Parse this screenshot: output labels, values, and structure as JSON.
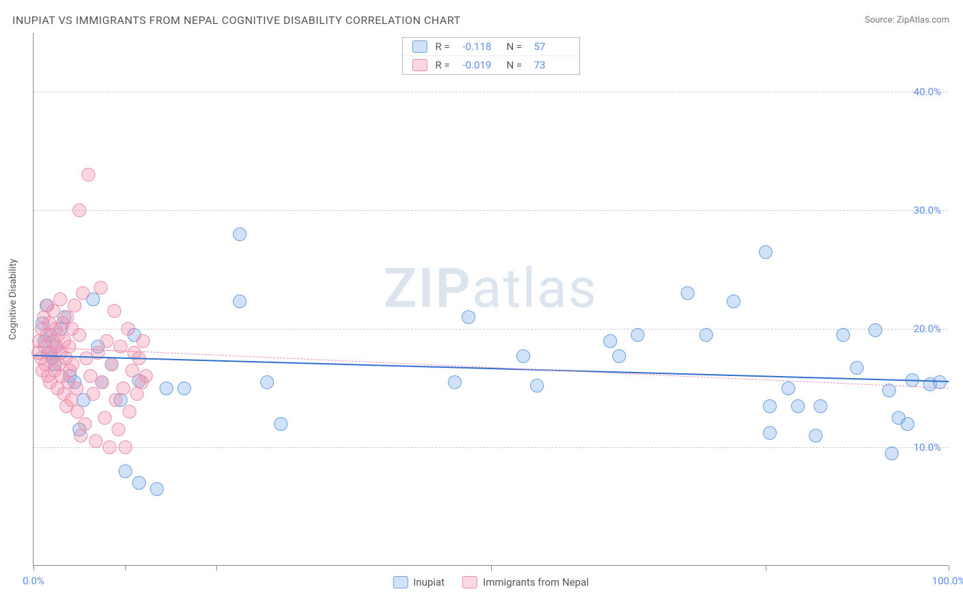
{
  "title": "INUPIAT VS IMMIGRANTS FROM NEPAL COGNITIVE DISABILITY CORRELATION CHART",
  "source_label": "Source: ",
  "source_value": "ZipAtlas.com",
  "ylabel": "Cognitive Disability",
  "watermark_a": "ZIP",
  "watermark_b": "atlas",
  "chart": {
    "type": "scatter",
    "background_color": "#ffffff",
    "grid_color": "#cccccc",
    "axis_color": "#888888",
    "label_color": "#5b8def",
    "text_color": "#555555",
    "xlim": [
      0,
      100
    ],
    "ylim": [
      0,
      45
    ],
    "y_gridlines": [
      10,
      20,
      30,
      40
    ],
    "y_tick_labels": [
      "10.0%",
      "20.0%",
      "30.0%",
      "40.0%"
    ],
    "x_ticks": [
      0,
      10,
      20,
      50,
      80,
      100
    ],
    "x_tick_labels": [
      "0.0%",
      "",
      "",
      "",
      "",
      "100.0%"
    ],
    "marker_radius": 10,
    "series": [
      {
        "id": "inupiat",
        "name": "Inupiat",
        "marker_fill": "rgba(120,170,235,0.35)",
        "marker_stroke": "#6aa0e0",
        "trend_color": "#2f6fd0",
        "trend_dash": "solid",
        "trend_width": 2,
        "trend": {
          "x1": 0,
          "y1": 17.8,
          "x2": 100,
          "y2": 15.6
        },
        "R_label": "R =",
        "R": "-0.118",
        "N_label": "N =",
        "N": "57",
        "points": [
          [
            1.0,
            20.5
          ],
          [
            1.2,
            19.0
          ],
          [
            1.4,
            22.0
          ],
          [
            1.6,
            18.0
          ],
          [
            1.8,
            19.5
          ],
          [
            2.0,
            17.5
          ],
          [
            2.3,
            17.0
          ],
          [
            2.5,
            18.5
          ],
          [
            3.0,
            20.0
          ],
          [
            3.4,
            21.0
          ],
          [
            4.0,
            16.0
          ],
          [
            4.5,
            15.5
          ],
          [
            5.0,
            11.5
          ],
          [
            5.5,
            14.0
          ],
          [
            6.5,
            22.5
          ],
          [
            7.0,
            18.5
          ],
          [
            7.5,
            15.5
          ],
          [
            8.5,
            17.0
          ],
          [
            9.5,
            14.0
          ],
          [
            10.0,
            8.0
          ],
          [
            11.0,
            19.5
          ],
          [
            11.5,
            7.0
          ],
          [
            11.5,
            15.6
          ],
          [
            13.5,
            6.5
          ],
          [
            14.5,
            15.0
          ],
          [
            16.5,
            15.0
          ],
          [
            22.5,
            22.3
          ],
          [
            22.5,
            28.0
          ],
          [
            25.5,
            15.5
          ],
          [
            27.0,
            12.0
          ],
          [
            46.0,
            15.5
          ],
          [
            47.5,
            21.0
          ],
          [
            53.5,
            17.7
          ],
          [
            55.0,
            15.2
          ],
          [
            63.0,
            19.0
          ],
          [
            64.0,
            17.7
          ],
          [
            66.0,
            19.5
          ],
          [
            71.5,
            23.0
          ],
          [
            73.5,
            19.5
          ],
          [
            76.5,
            22.3
          ],
          [
            80.0,
            26.5
          ],
          [
            80.5,
            13.5
          ],
          [
            80.5,
            11.2
          ],
          [
            82.5,
            15.0
          ],
          [
            83.5,
            13.5
          ],
          [
            85.5,
            11.0
          ],
          [
            86.0,
            13.5
          ],
          [
            88.5,
            19.5
          ],
          [
            90.0,
            16.7
          ],
          [
            92.0,
            19.9
          ],
          [
            93.5,
            14.8
          ],
          [
            93.8,
            9.5
          ],
          [
            94.5,
            12.5
          ],
          [
            95.5,
            12.0
          ],
          [
            96.0,
            15.7
          ],
          [
            98.0,
            15.3
          ],
          [
            99.0,
            15.5
          ]
        ]
      },
      {
        "id": "nepal",
        "name": "Immigrants from Nepal",
        "marker_fill": "rgba(240,140,170,0.35)",
        "marker_stroke": "#e88fb0",
        "trend_color": "#e88fb0",
        "trend_dash": "dashed",
        "trend_width": 1.5,
        "trend": {
          "x1": 0,
          "y1": 18.5,
          "x2": 100,
          "y2": 15.0
        },
        "trend_solid_until_x": 12,
        "R_label": "R =",
        "R": "-0.019",
        "N_label": "N =",
        "N": "73",
        "points": [
          [
            0.5,
            18.0
          ],
          [
            0.6,
            19.0
          ],
          [
            0.8,
            17.5
          ],
          [
            0.9,
            20.0
          ],
          [
            1.0,
            16.5
          ],
          [
            1.1,
            21.0
          ],
          [
            1.2,
            18.5
          ],
          [
            1.3,
            17.0
          ],
          [
            1.4,
            19.5
          ],
          [
            1.5,
            22.0
          ],
          [
            1.6,
            16.0
          ],
          [
            1.7,
            20.5
          ],
          [
            1.8,
            15.5
          ],
          [
            1.9,
            18.0
          ],
          [
            2.0,
            17.5
          ],
          [
            2.1,
            19.0
          ],
          [
            2.2,
            21.5
          ],
          [
            2.3,
            16.5
          ],
          [
            2.4,
            20.0
          ],
          [
            2.5,
            18.5
          ],
          [
            2.6,
            15.0
          ],
          [
            2.7,
            19.5
          ],
          [
            2.8,
            17.0
          ],
          [
            2.9,
            22.5
          ],
          [
            3.0,
            18.0
          ],
          [
            3.1,
            16.0
          ],
          [
            3.2,
            20.5
          ],
          [
            3.3,
            14.5
          ],
          [
            3.4,
            19.0
          ],
          [
            3.5,
            17.5
          ],
          [
            3.6,
            13.5
          ],
          [
            3.7,
            21.0
          ],
          [
            3.8,
            15.5
          ],
          [
            3.9,
            18.5
          ],
          [
            4.0,
            16.5
          ],
          [
            4.1,
            14.0
          ],
          [
            4.2,
            20.0
          ],
          [
            4.3,
            17.0
          ],
          [
            4.5,
            22.0
          ],
          [
            4.7,
            15.0
          ],
          [
            4.8,
            13.0
          ],
          [
            5.0,
            19.5
          ],
          [
            5.2,
            11.0
          ],
          [
            5.4,
            23.0
          ],
          [
            5.6,
            12.0
          ],
          [
            5.8,
            17.5
          ],
          [
            5.0,
            30.0
          ],
          [
            6.2,
            16.0
          ],
          [
            6.5,
            14.5
          ],
          [
            6.8,
            10.5
          ],
          [
            7.0,
            18.0
          ],
          [
            6.0,
            33.0
          ],
          [
            7.3,
            23.5
          ],
          [
            7.5,
            15.5
          ],
          [
            7.8,
            12.5
          ],
          [
            8.0,
            19.0
          ],
          [
            8.3,
            10.0
          ],
          [
            8.5,
            17.0
          ],
          [
            8.8,
            21.5
          ],
          [
            9.0,
            14.0
          ],
          [
            9.3,
            11.5
          ],
          [
            9.5,
            18.5
          ],
          [
            9.8,
            15.0
          ],
          [
            10.0,
            10.0
          ],
          [
            10.3,
            20.0
          ],
          [
            10.5,
            13.0
          ],
          [
            10.8,
            16.5
          ],
          [
            11.0,
            18.0
          ],
          [
            11.3,
            14.5
          ],
          [
            11.5,
            17.5
          ],
          [
            11.8,
            15.5
          ],
          [
            12.0,
            19.0
          ],
          [
            12.3,
            16.0
          ]
        ]
      }
    ]
  },
  "legend_bottom": [
    {
      "swatch_series": "inupiat"
    },
    {
      "swatch_series": "nepal"
    }
  ]
}
